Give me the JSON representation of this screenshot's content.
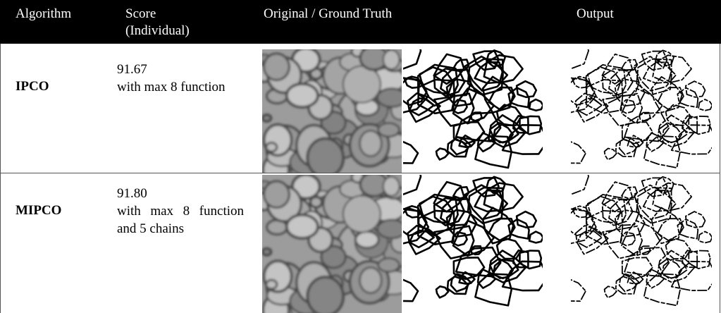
{
  "table": {
    "columns": [
      "Algorithm",
      "Score (Individual)",
      "Original / Ground Truth",
      "Output"
    ],
    "rows": [
      {
        "algorithm": "IPCO",
        "score": "91.67",
        "note": "with max 8 function"
      },
      {
        "algorithm": "MIPCO",
        "score": "91.80",
        "note": "with max 8 function and 5 chains"
      }
    ]
  }
}
